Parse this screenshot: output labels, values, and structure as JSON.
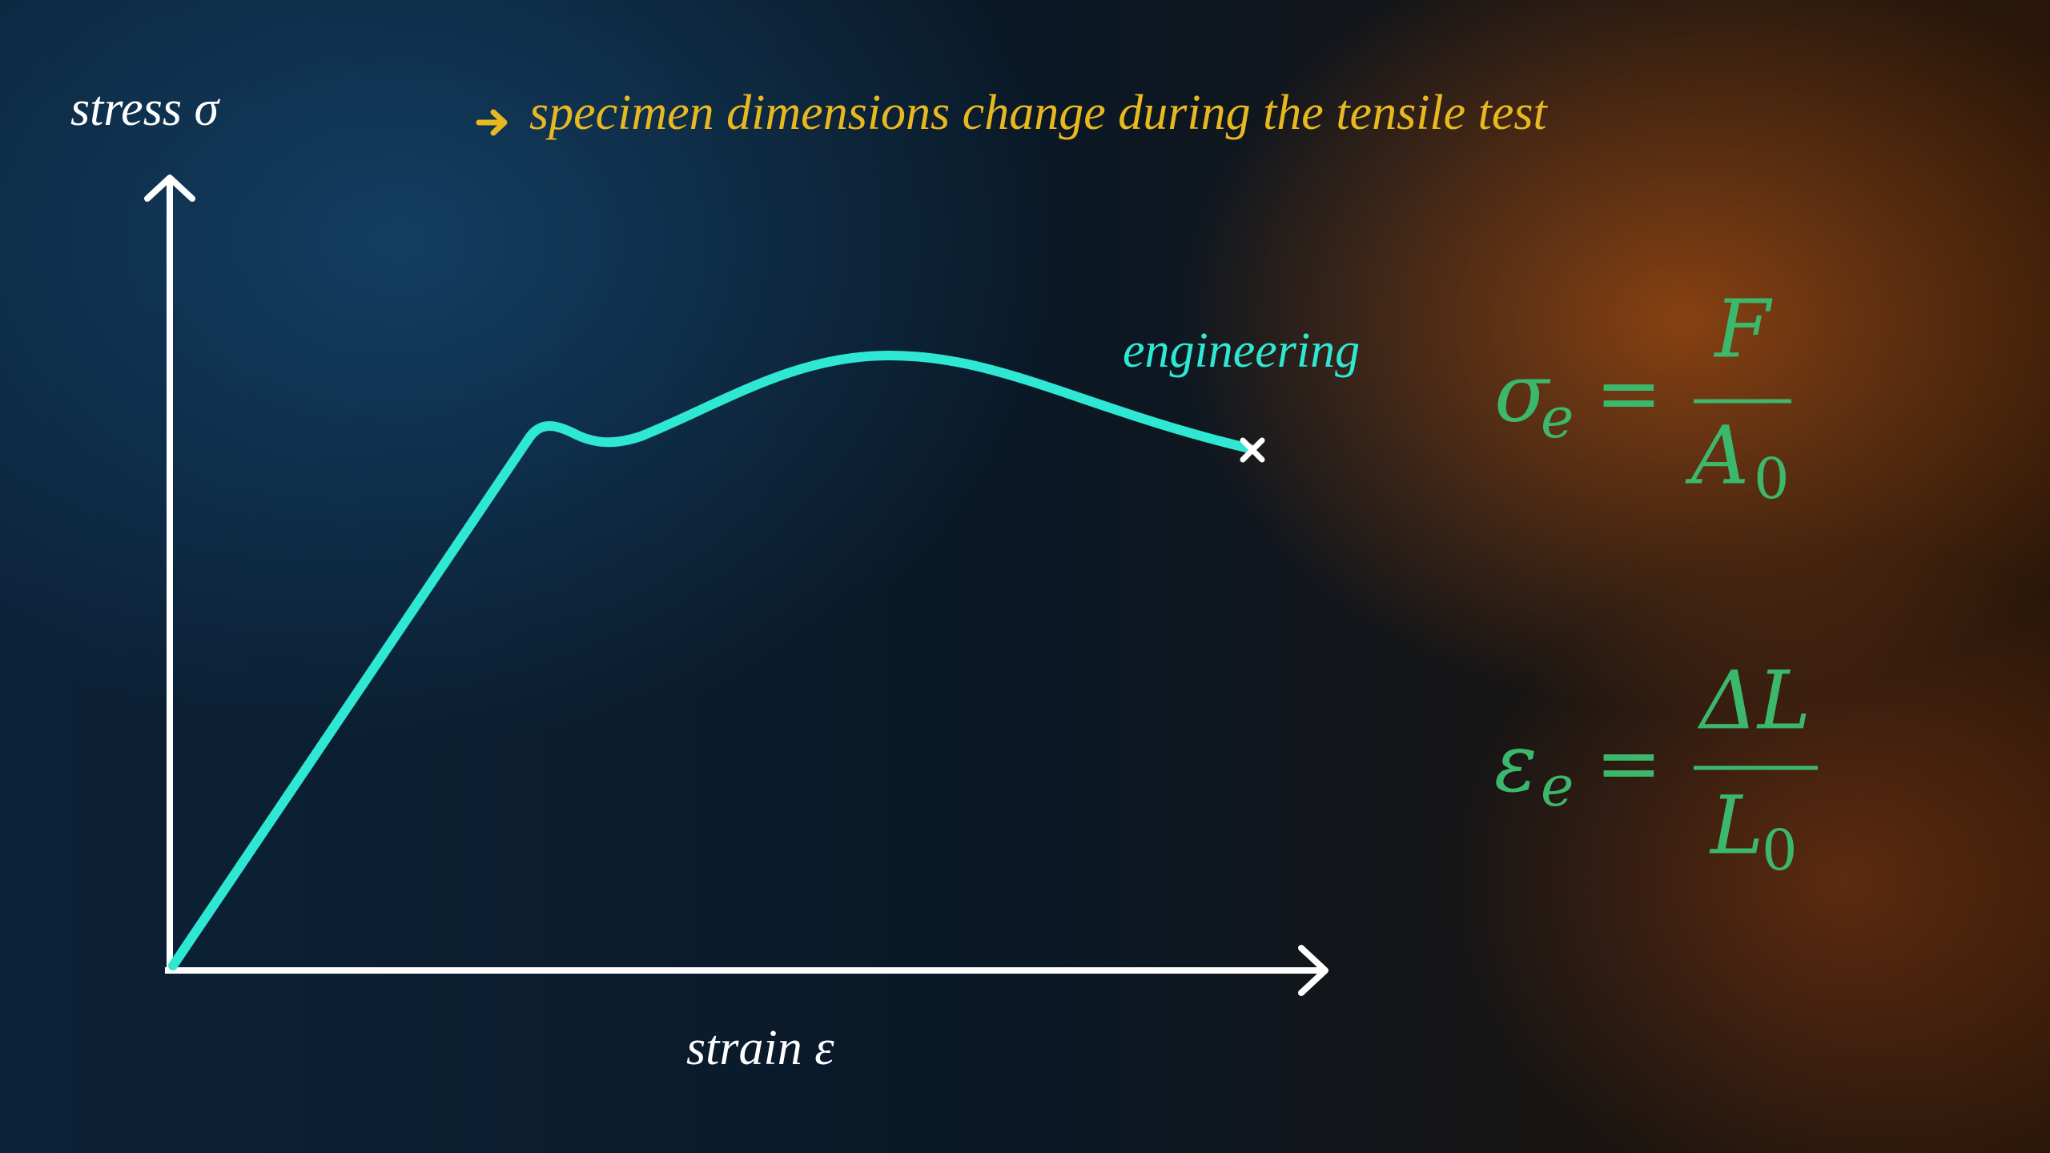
{
  "axes": {
    "y_label": "stress σ",
    "x_label": "strain ε"
  },
  "annotation": "specimen dimensions change during the tensile test",
  "curve_label": "engineering",
  "formulas": [
    {
      "symbol": "σ",
      "subscript": "e",
      "equals": "=",
      "numerator": "F",
      "denominator": "A",
      "denominator_subscript": "0"
    },
    {
      "symbol": "ε",
      "subscript": "e",
      "equals": "=",
      "numerator": "ΔL",
      "denominator": "L",
      "denominator_subscript": "0"
    }
  ]
}
